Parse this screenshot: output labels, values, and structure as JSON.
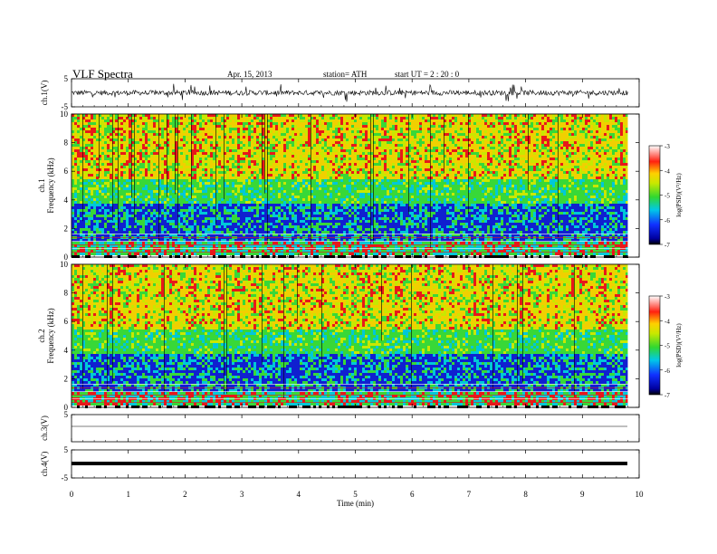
{
  "header": {
    "title": "VLF  Spectra",
    "date": "Apr. 15, 2013",
    "station": "station= ATH",
    "start": "start  UT  =   2  : 20 : 0"
  },
  "chart_data": [
    {
      "type": "line",
      "id": "ch1",
      "ylabel": "ch.1(V)",
      "ylim": [
        -5,
        5
      ],
      "yticks": [
        "5",
        "-5"
      ],
      "xlim": [
        0,
        10
      ],
      "description_values": "noisy waveform centered near 0 V, spikes to about +/-3 V"
    },
    {
      "type": "heatmap",
      "id": "spec1",
      "ylabel_channel": "ch.1",
      "ylabel": "Frequency  (kHz)",
      "ylim": [
        0,
        10
      ],
      "yticks": [
        "0",
        "2",
        "4",
        "6",
        "8",
        "10"
      ],
      "xlim": [
        0,
        9.8
      ],
      "colorbar": {
        "label": "log(PSD)(V²/Hz)",
        "range": [
          -7,
          -3
        ],
        "ticks": [
          "-3",
          "-4",
          "-5",
          "-6",
          "-7"
        ]
      }
    },
    {
      "type": "heatmap",
      "id": "spec2",
      "ylabel_channel": "ch.2",
      "ylabel": "Frequency  (kHz)",
      "ylim": [
        0,
        10
      ],
      "yticks": [
        "0",
        "2",
        "4",
        "6",
        "8",
        "10"
      ],
      "xlim": [
        0,
        9.8
      ],
      "colorbar": {
        "label": "log(PSD)(V²/Hz)",
        "range": [
          -7,
          -3
        ],
        "ticks": [
          "-3",
          "-4",
          "-5",
          "-6",
          "-7"
        ]
      }
    },
    {
      "type": "line",
      "id": "ch3",
      "ylabel": "ch.3(V)",
      "ylim": [
        -5,
        5
      ],
      "yticks": [
        "5"
      ],
      "xlim": [
        0,
        10
      ],
      "values_level": 0
    },
    {
      "type": "line",
      "id": "ch4",
      "ylabel": "ch.4(V)",
      "ylim": [
        -5,
        5
      ],
      "yticks": [
        "5",
        "-5"
      ],
      "xlim": [
        0,
        10
      ],
      "values_level": 0
    }
  ],
  "xaxis": {
    "label": "Time  (min)",
    "ticks": [
      "0",
      "1",
      "2",
      "3",
      "4",
      "5",
      "6",
      "7",
      "8",
      "9",
      "10"
    ],
    "range": [
      0,
      10
    ]
  },
  "colors": {
    "hot": "#e8181a",
    "warm": "#f0d000",
    "mid": "#38d838",
    "cool": "#00c8d8",
    "cold": "#1020d0",
    "floor": "#000080"
  }
}
